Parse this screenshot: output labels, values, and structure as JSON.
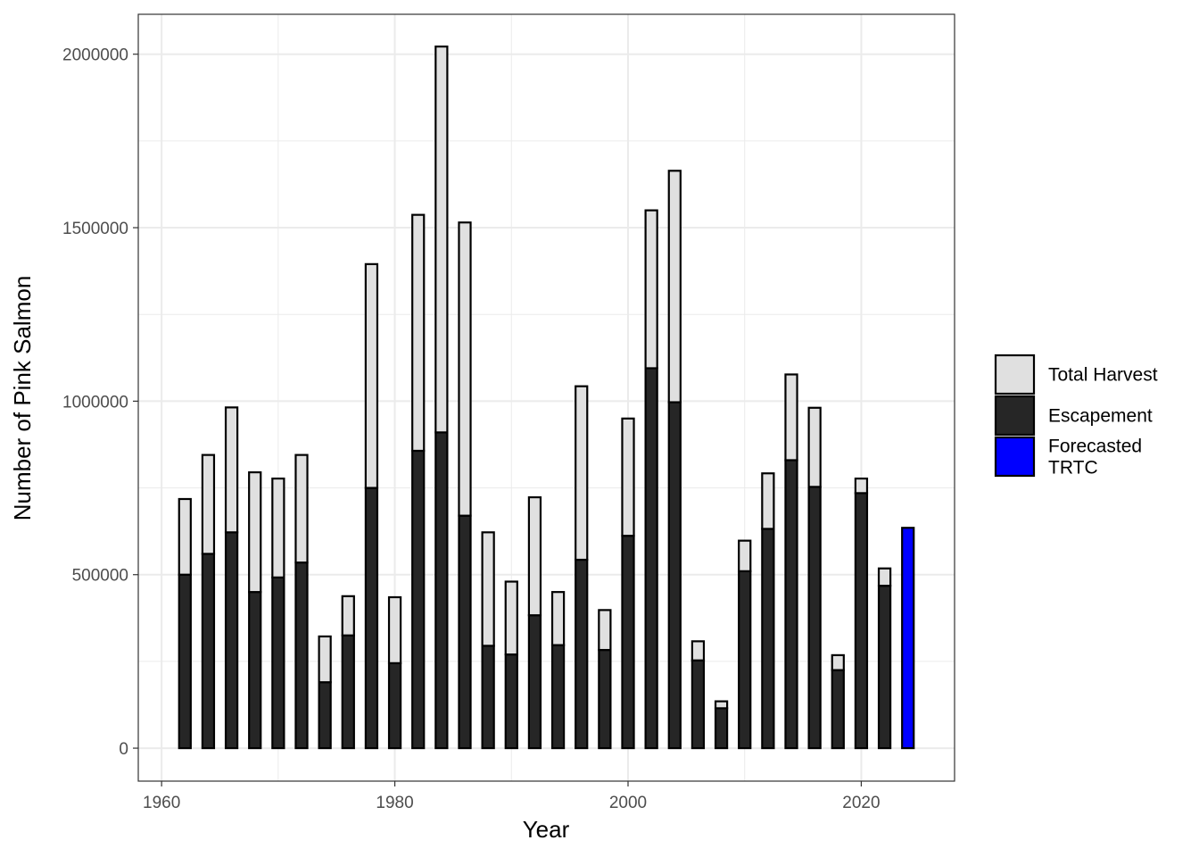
{
  "chart_data": {
    "type": "bar",
    "stacked": true,
    "xlabel": "Year",
    "ylabel": "Number of Pink Salmon",
    "xlim": [
      1958,
      2028
    ],
    "ylim": [
      -95000,
      2115000
    ],
    "x_ticks": [
      1960,
      1980,
      2000,
      2020
    ],
    "y_ticks": [
      0,
      500000,
      1000000,
      1500000,
      2000000
    ],
    "x_tick_labels": [
      "1960",
      "1980",
      "2000",
      "2020"
    ],
    "y_tick_labels": [
      "0",
      "500000",
      "1000000",
      "1500000",
      "2000000"
    ],
    "grid": true,
    "legend_position": "right",
    "years": [
      1962,
      1964,
      1966,
      1968,
      1970,
      1972,
      1974,
      1976,
      1978,
      1980,
      1982,
      1984,
      1986,
      1988,
      1990,
      1992,
      1994,
      1996,
      1998,
      2000,
      2002,
      2004,
      2006,
      2008,
      2010,
      2012,
      2014,
      2016,
      2018,
      2020,
      2022
    ],
    "series": [
      {
        "name": "Escapement",
        "color": "#262626",
        "values": [
          500000,
          560000,
          622000,
          450000,
          492000,
          535000,
          190000,
          325000,
          750000,
          245000,
          857000,
          910000,
          670000,
          295000,
          270000,
          383000,
          297000,
          543000,
          283000,
          612000,
          1095000,
          997000,
          253000,
          115000,
          510000,
          632000,
          830000,
          753000,
          225000,
          735000,
          468000
        ]
      },
      {
        "name": "Total Harvest",
        "color": "#e0e0e0",
        "values": [
          218000,
          285000,
          360000,
          345000,
          285000,
          310000,
          132000,
          113000,
          645000,
          190000,
          680000,
          1112000,
          845000,
          327000,
          210000,
          340000,
          153000,
          500000,
          115000,
          338000,
          455000,
          667000,
          55000,
          20000,
          88000,
          160000,
          247000,
          228000,
          43000,
          42000,
          50000
        ]
      },
      {
        "name": "Forecasted TRTC",
        "color": "#0000ff",
        "x": [
          2024
        ],
        "values": [
          635000
        ]
      }
    ],
    "legend": [
      {
        "label_lines": [
          "Total Harvest"
        ],
        "color": "#e0e0e0"
      },
      {
        "label_lines": [
          "Escapement"
        ],
        "color": "#262626"
      },
      {
        "label_lines": [
          "Forecasted",
          "TRTC"
        ],
        "color": "#0000ff"
      }
    ]
  }
}
